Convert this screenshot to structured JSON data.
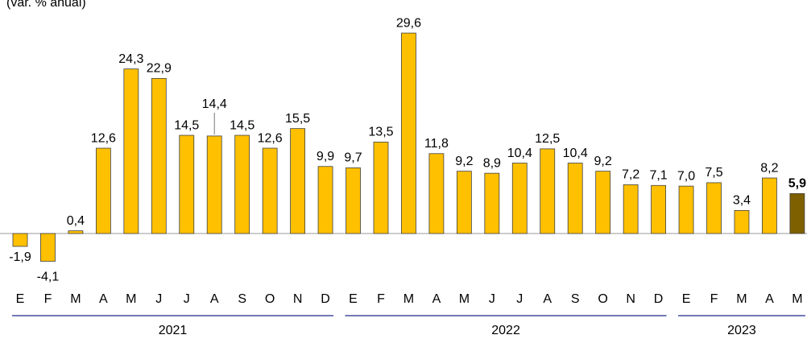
{
  "chart_data": {
    "type": "bar",
    "subtitle": "(var. % anual)",
    "categories": [
      "E",
      "F",
      "M",
      "A",
      "M",
      "J",
      "J",
      "A",
      "S",
      "O",
      "N",
      "D",
      "E",
      "F",
      "M",
      "A",
      "M",
      "J",
      "J",
      "A",
      "S",
      "O",
      "N",
      "D",
      "E",
      "F",
      "M",
      "A",
      "M"
    ],
    "values": [
      -1.9,
      -4.1,
      0.4,
      12.6,
      24.3,
      22.9,
      14.5,
      14.4,
      14.5,
      12.6,
      15.5,
      9.9,
      9.7,
      13.5,
      29.6,
      11.8,
      9.2,
      8.9,
      10.4,
      12.5,
      10.4,
      9.2,
      7.2,
      7.1,
      7.0,
      7.5,
      3.4,
      8.2,
      5.9
    ],
    "value_labels": [
      "-1,9",
      "-4,1",
      "0,4",
      "12,6",
      "24,3",
      "22,9",
      "14,5",
      "14,4",
      "14,5",
      "12,6",
      "15,5",
      "9,9",
      "9,7",
      "13,5",
      "29,6",
      "11,8",
      "9,2",
      "8,9",
      "10,4",
      "12,5",
      "10,4",
      "9,2",
      "7,2",
      "7,1",
      "7,0",
      "7,5",
      "3,4",
      "8,2",
      "5,9"
    ],
    "color": "#FFC000",
    "bar_colors": [
      "#FFC000",
      "#FFC000",
      "#FFC000",
      "#FFC000",
      "#FFC000",
      "#FFC000",
      "#FFC000",
      "#FFC000",
      "#FFC000",
      "#FFC000",
      "#FFC000",
      "#FFC000",
      "#FFC000",
      "#FFC000",
      "#FFC000",
      "#FFC000",
      "#FFC000",
      "#FFC000",
      "#FFC000",
      "#FFC000",
      "#FFC000",
      "#FFC000",
      "#FFC000",
      "#FFC000",
      "#FFC000",
      "#FFC000",
      "#FFC000",
      "#FFC000",
      "#7F6000"
    ],
    "year_groups": [
      {
        "name": "2021",
        "count": 12
      },
      {
        "name": "2022",
        "count": 12
      },
      {
        "name": "2023",
        "count": 5
      }
    ]
  }
}
